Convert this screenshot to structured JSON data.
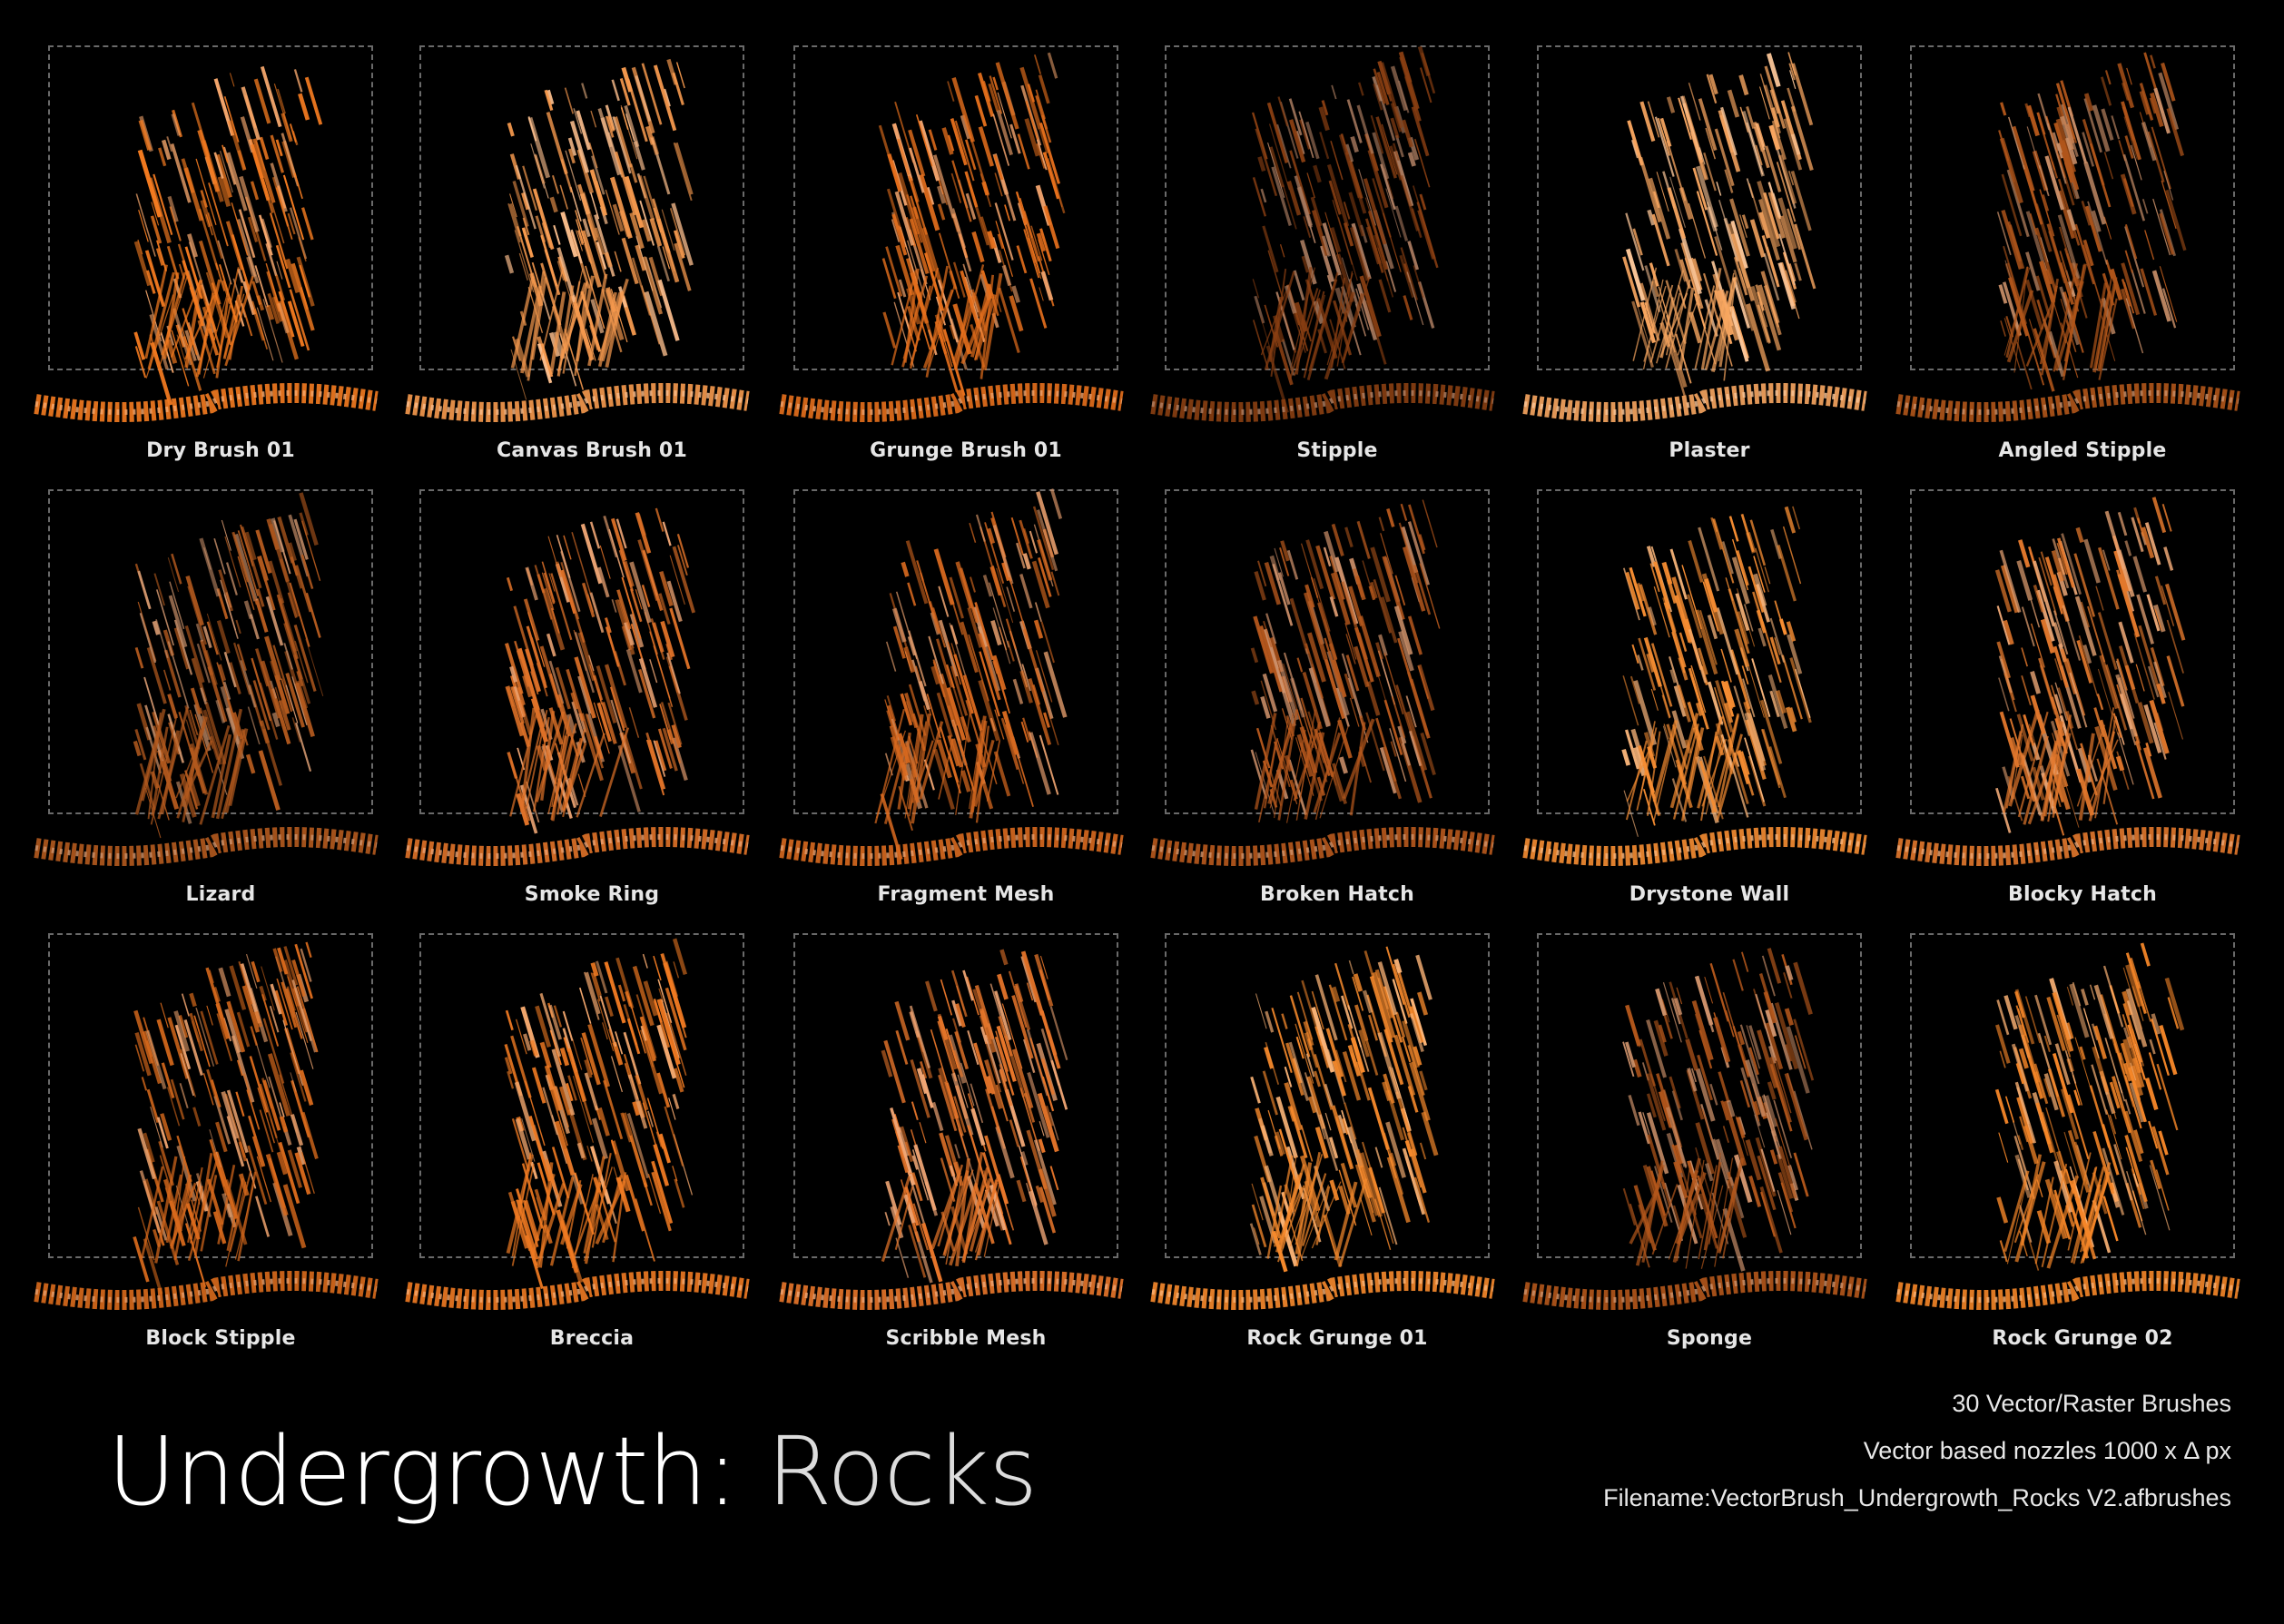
{
  "brushes": [
    {
      "label": "Dry Brush 01",
      "color": "#f47b20"
    },
    {
      "label": "Canvas Brush 01",
      "color": "#f79a4e"
    },
    {
      "label": "Grunge Brush 01",
      "color": "#e56f1c"
    },
    {
      "label": "Stipple",
      "color": "#8a3f12"
    },
    {
      "label": "Plaster",
      "color": "#f8a660"
    },
    {
      "label": "Angled Stipple",
      "color": "#b0551a"
    },
    {
      "label": "Lizard",
      "color": "#b45a1e"
    },
    {
      "label": "Smoke Ring",
      "color": "#e07228"
    },
    {
      "label": "Fragment Mesh",
      "color": "#d8691f"
    },
    {
      "label": "Broken Hatch",
      "color": "#b8591d"
    },
    {
      "label": "Drystone Wall",
      "color": "#f68d32"
    },
    {
      "label": "Blocky Hatch",
      "color": "#e2782c"
    },
    {
      "label": "Block Stipple",
      "color": "#d96a1c"
    },
    {
      "label": "Breccia",
      "color": "#f07a22"
    },
    {
      "label": "Scribble Mesh",
      "color": "#e8762a"
    },
    {
      "label": "Rock Grunge 01",
      "color": "#f78a2c"
    },
    {
      "label": "Sponge",
      "color": "#b4571b"
    },
    {
      "label": "Rock Grunge 02",
      "color": "#f58628"
    }
  ],
  "title": {
    "main": "Undergrowth:",
    "sub": "Rocks"
  },
  "info": {
    "count": "30 Vector/Raster Brushes",
    "nozzles": "Vector based nozzles 1000 x Δ px",
    "filename": "Filename:VectorBrush_Undergrowth_Rocks V2.afbrushes"
  },
  "accent_color": "#f47b20"
}
